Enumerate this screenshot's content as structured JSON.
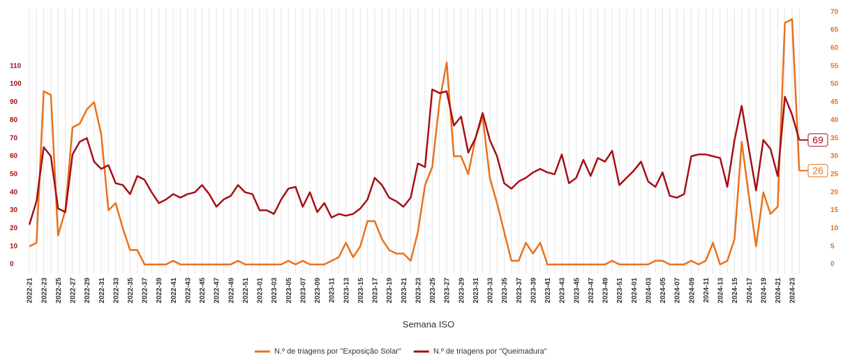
{
  "chart_data": {
    "type": "line",
    "x_label": "Semana ISO",
    "categories": [
      "2022-21",
      null,
      "2022-23",
      null,
      "2022-25",
      null,
      "2022-27",
      null,
      "2022-29",
      null,
      "2022-31",
      null,
      "2022-33",
      null,
      "2022-35",
      null,
      "2022-37",
      null,
      "2022-39",
      null,
      "2022-41",
      null,
      "2022-43",
      null,
      "2022-45",
      null,
      "2022-47",
      null,
      "2022-49",
      null,
      "2022-51",
      null,
      "2023-01",
      null,
      "2023-03",
      null,
      "2023-05",
      null,
      "2023-07",
      null,
      "2023-09",
      null,
      "2023-11",
      null,
      "2023-13",
      null,
      "2023-15",
      null,
      "2023-17",
      null,
      "2023-19",
      null,
      "2023-21",
      null,
      "2023-23",
      null,
      "2023-25",
      null,
      "2023-27",
      null,
      "2023-29",
      null,
      "2023-31",
      null,
      "2023-33",
      null,
      "2023-35",
      null,
      "2023-37",
      null,
      "2023-39",
      null,
      "2023-41",
      null,
      "2023-43",
      null,
      "2023-45",
      null,
      "2023-47",
      null,
      "2023-49",
      null,
      "2023-51",
      null,
      "2024-01",
      null,
      "2024-03",
      null,
      "2024-05",
      null,
      "2024-07",
      null,
      "2024-09",
      null,
      "2024-11",
      null,
      "2024-13",
      null,
      "2024-15",
      null,
      "2024-17",
      null,
      "2024-19",
      null,
      "2024-21",
      null,
      "2024-23",
      null
    ],
    "series": [
      {
        "name": "N.º de triagens por \"Exposição Solar\"",
        "color": "#e8711c",
        "axis": "y2",
        "values": [
          5,
          6,
          48,
          47,
          8,
          15,
          38,
          39,
          43,
          45,
          36,
          15,
          17,
          10,
          4,
          4,
          0,
          0,
          0,
          0,
          1,
          0,
          0,
          0,
          0,
          0,
          0,
          0,
          0,
          1,
          0,
          0,
          0,
          0,
          0,
          0,
          1,
          0,
          1,
          0,
          0,
          0,
          1,
          2,
          6,
          2,
          5,
          12,
          12,
          7,
          4,
          3,
          3,
          1,
          9,
          22,
          27,
          45,
          56,
          30,
          30,
          25,
          35,
          41,
          24,
          17,
          9,
          1,
          1,
          6,
          3,
          6,
          0,
          0,
          0,
          0,
          0,
          0,
          0,
          0,
          0,
          1,
          0,
          0,
          0,
          0,
          0,
          1,
          1,
          0,
          0,
          0,
          1,
          0,
          1,
          6,
          0,
          1,
          7,
          34,
          19,
          5,
          20,
          14,
          16,
          67,
          68,
          26
        ]
      },
      {
        "name": "N.º de triagens por \"Queimadura\"",
        "color": "#a50f15",
        "axis": "y",
        "values": [
          22,
          35,
          65,
          60,
          31,
          29,
          61,
          68,
          70,
          57,
          53,
          55,
          45,
          44,
          39,
          49,
          47,
          40,
          34,
          36,
          39,
          37,
          39,
          40,
          44,
          39,
          32,
          36,
          38,
          44,
          40,
          39,
          30,
          30,
          28,
          36,
          42,
          43,
          32,
          40,
          29,
          34,
          26,
          28,
          27,
          28,
          31,
          36,
          48,
          44,
          37,
          35,
          32,
          37,
          56,
          54,
          97,
          95,
          96,
          77,
          82,
          62,
          70,
          84,
          69,
          60,
          45,
          42,
          46,
          48,
          51,
          53,
          51,
          50,
          61,
          45,
          48,
          58,
          49,
          59,
          57,
          63,
          44,
          48,
          52,
          57,
          46,
          43,
          51,
          38,
          37,
          39,
          60,
          61,
          61,
          60,
          59,
          43,
          69,
          88,
          64,
          41,
          69,
          64,
          49,
          93,
          83,
          69
        ]
      }
    ],
    "ylim": [
      -5,
      142
    ],
    "yticks": [
      0,
      10,
      20,
      30,
      40,
      50,
      60,
      70,
      80,
      90,
      100,
      110
    ],
    "y2lim": [
      -2.5,
      71
    ],
    "y2ticks": [
      0,
      5,
      10,
      15,
      20,
      25,
      30,
      35,
      40,
      45,
      50,
      55,
      60,
      65,
      70
    ],
    "grid": "x",
    "legend": "bottom"
  }
}
